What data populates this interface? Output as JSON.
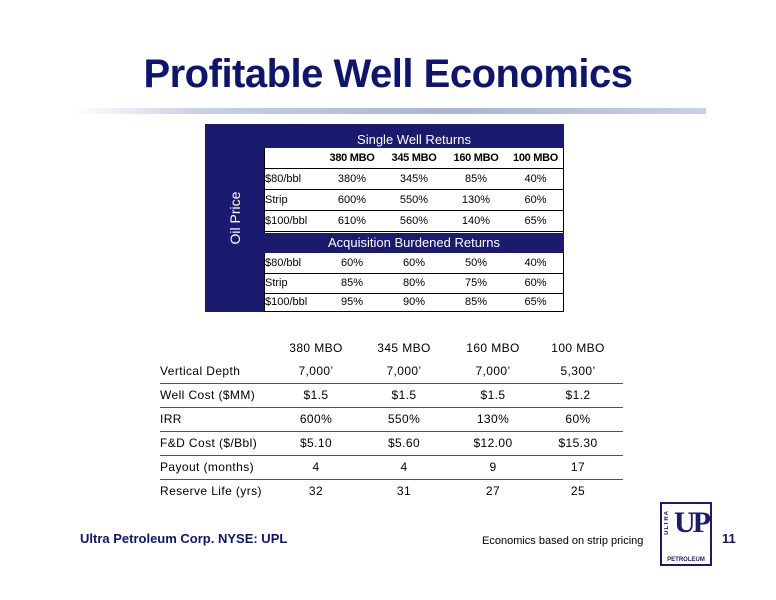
{
  "title": "Profitable Well Economics",
  "top_table": {
    "side_label": "Oil Price",
    "section1_title": "Single Well Returns",
    "section2_title": "Acquisition Burdened Returns",
    "columns": [
      "",
      "380 MBO",
      "345 MBO",
      "160 MBO",
      "100 MBO"
    ],
    "section1_rows": [
      [
        "$80/bbl",
        "380%",
        "345%",
        "85%",
        "40%"
      ],
      [
        "Strip",
        "600%",
        "550%",
        "130%",
        "60%"
      ],
      [
        "$100/bbl",
        "610%",
        "560%",
        "140%",
        "65%"
      ]
    ],
    "section2_rows": [
      [
        "$80/bbl",
        "60%",
        "60%",
        "50%",
        "40%"
      ],
      [
        "Strip",
        "85%",
        "80%",
        "75%",
        "60%"
      ],
      [
        "$100/bbl",
        "95%",
        "90%",
        "85%",
        "65%"
      ]
    ]
  },
  "bottom_table": {
    "columns": [
      "",
      "380 MBO",
      "345 MBO",
      "160 MBO",
      "100 MBO"
    ],
    "rows": [
      [
        "Vertical Depth",
        "7,000’",
        "7,000’",
        "7,000’",
        "5,300’"
      ],
      [
        "Well Cost ($MM)",
        "$1.5",
        "$1.5",
        "$1.5",
        "$1.2"
      ],
      [
        "IRR",
        "600%",
        "550%",
        "130%",
        "60%"
      ],
      [
        "F&D Cost ($/Bbl)",
        "$5.10",
        "$5.60",
        "$12.00",
        "$15.30"
      ],
      [
        "Payout (months)",
        "4",
        "4",
        "9",
        "17"
      ],
      [
        "Reserve Life (yrs)",
        "32",
        "31",
        "27",
        "25"
      ]
    ]
  },
  "footer": {
    "company": "Ultra Petroleum Corp. NYSE: UPL",
    "note": "Economics based on strip pricing",
    "page_number": "11",
    "logo": {
      "top": "ULTRA",
      "main": "UP",
      "bottom": "PETROLEUM"
    }
  },
  "colors": {
    "navy": "#1a1a6e",
    "title": "#0d1570"
  }
}
